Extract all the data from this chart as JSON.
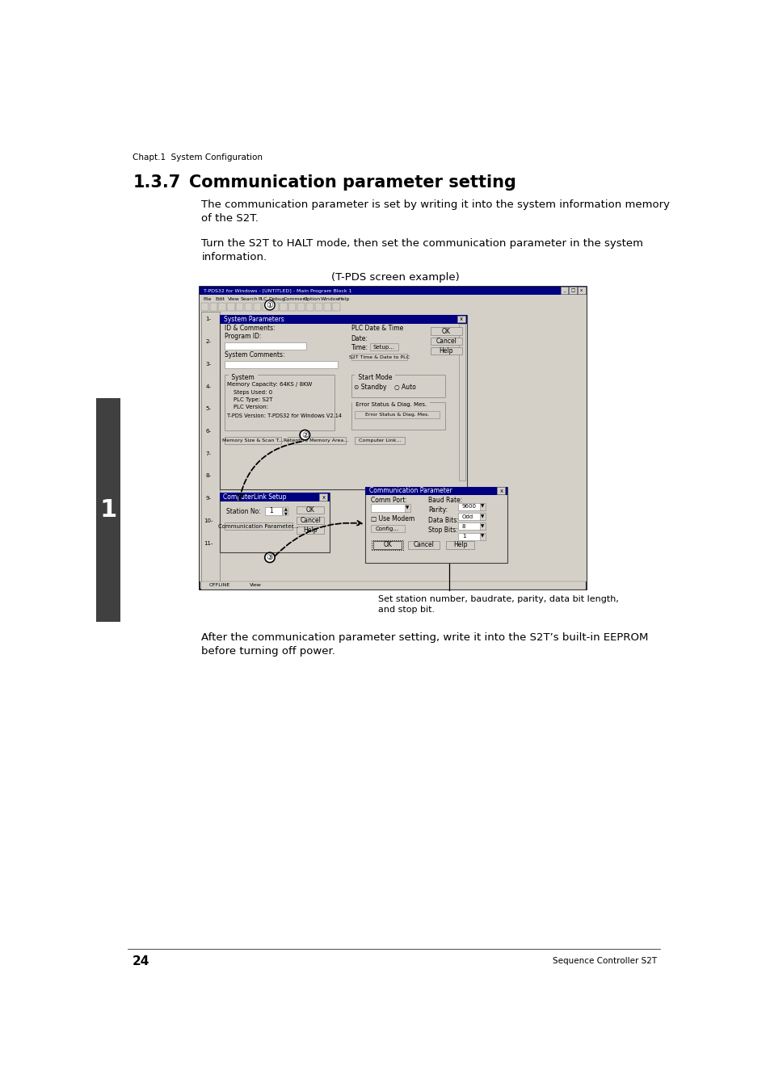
{
  "page_number": "24",
  "footer_right": "Sequence Controller S2T",
  "header_text": "Chapt.1  System Configuration",
  "section_number": "1.3.7",
  "section_title": "Communication parameter setting",
  "para1": "The communication parameter is set by writing it into the system information memory\nof the S2T.",
  "para2": "Turn the S2T to HALT mode, then set the communication parameter in the system\ninformation.",
  "screen_label": "(T-PDS screen example)",
  "caption": "Set station number, baudrate, parity, data bit length,\nand stop bit.",
  "para3": "After the communication parameter setting, write it into the S2T’s built-in EEPROM\nbefore turning off power.",
  "bg_color": "#ffffff",
  "text_color": "#000000",
  "sidebar_color": "#404040",
  "dlg_bg": "#d4d0c8",
  "title_bar_color": "#000080",
  "screen_outer": "#d4d0c8"
}
